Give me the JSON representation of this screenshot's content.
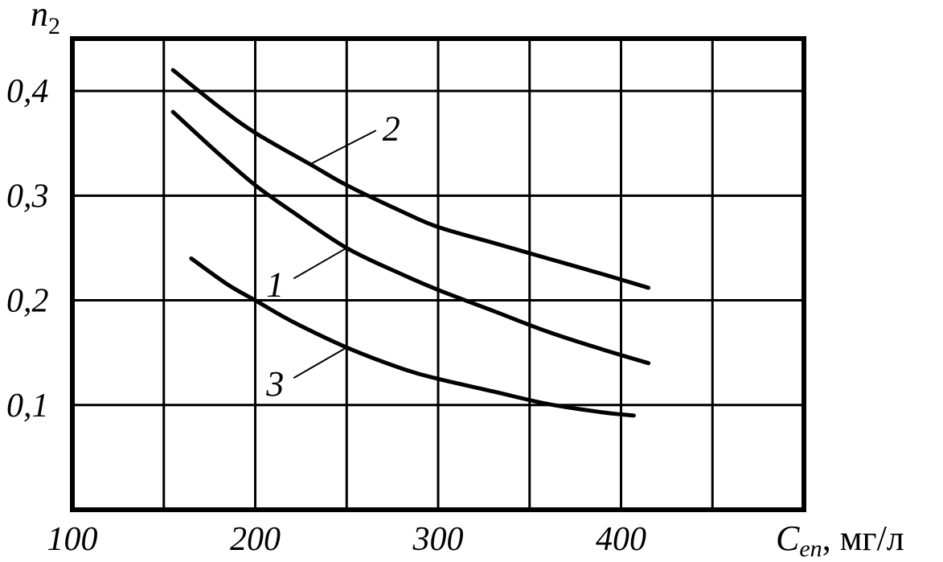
{
  "chart_data": {
    "type": "line",
    "ylabel": {
      "main": "n",
      "sub": "2"
    },
    "xlabel": {
      "main": "C",
      "sub": "en",
      "unit": ", мг/л"
    },
    "xlim": [
      100,
      500
    ],
    "ylim": [
      0,
      0.45
    ],
    "x_ticks": [
      {
        "value": 100,
        "label": "100"
      },
      {
        "value": 200,
        "label": "200"
      },
      {
        "value": 300,
        "label": "300"
      },
      {
        "value": 400,
        "label": "400"
      }
    ],
    "y_ticks": [
      {
        "value": 0.1,
        "label": "0,1"
      },
      {
        "value": 0.2,
        "label": "0,2"
      },
      {
        "value": 0.3,
        "label": "0,3"
      },
      {
        "value": 0.4,
        "label": "0,4"
      }
    ],
    "grid": true,
    "series": [
      {
        "name": "1",
        "x": [
          155,
          180,
          200,
          220,
          250,
          280,
          300,
          330,
          360,
          390,
          415
        ],
        "y": [
          0.38,
          0.34,
          0.31,
          0.285,
          0.25,
          0.225,
          0.21,
          0.19,
          0.17,
          0.153,
          0.14
        ]
      },
      {
        "name": "2",
        "x": [
          155,
          180,
          200,
          230,
          250,
          280,
          300,
          330,
          360,
          390,
          415
        ],
        "y": [
          0.42,
          0.385,
          0.36,
          0.33,
          0.31,
          0.285,
          0.27,
          0.255,
          0.24,
          0.225,
          0.212
        ]
      },
      {
        "name": "3",
        "x": [
          165,
          185,
          200,
          220,
          250,
          280,
          300,
          330,
          360,
          390,
          407
        ],
        "y": [
          0.24,
          0.215,
          0.2,
          0.18,
          0.155,
          0.135,
          0.125,
          0.113,
          0.101,
          0.093,
          0.09
        ]
      }
    ]
  }
}
